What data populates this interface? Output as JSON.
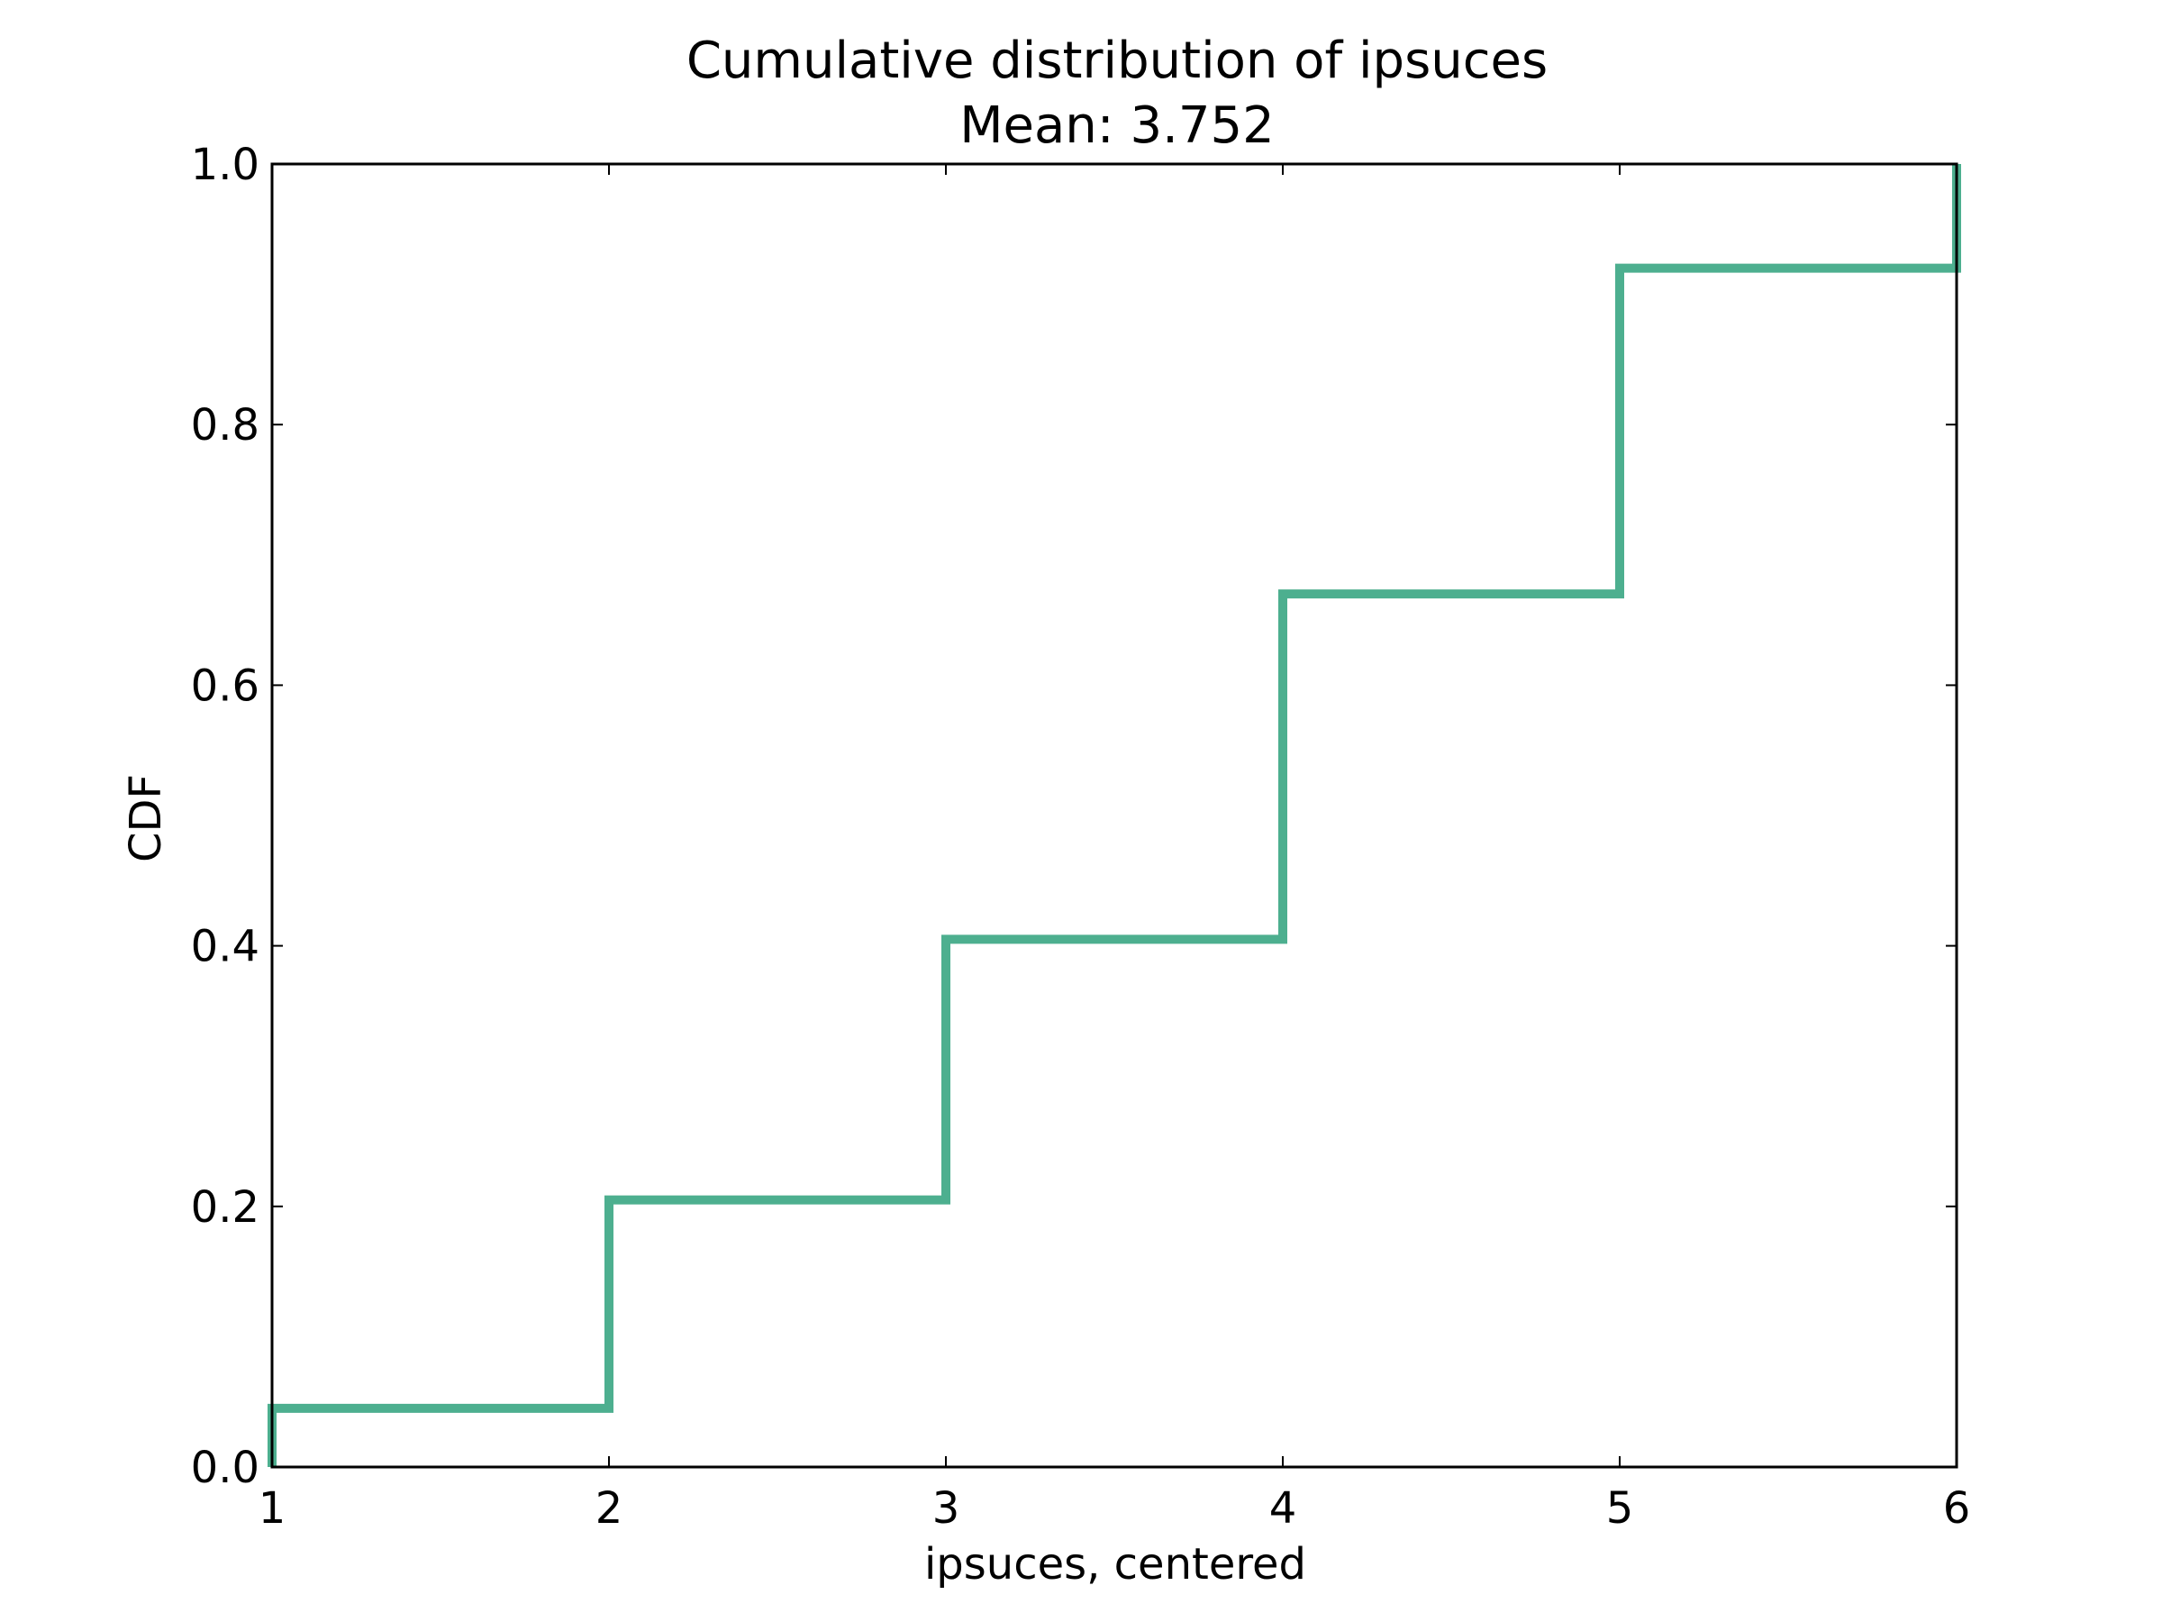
{
  "chart_data": {
    "type": "line",
    "title": "Cumulative distribution of ipsuces",
    "subtitle": "Mean: 3.752",
    "xlabel": "ipsuces, centered",
    "ylabel": "CDF",
    "xlim": [
      1,
      6
    ],
    "ylim": [
      0,
      1
    ],
    "x_ticks": [
      "1",
      "2",
      "3",
      "4",
      "5",
      "6"
    ],
    "y_ticks": [
      "0.0",
      "0.2",
      "0.4",
      "0.6",
      "0.8",
      "1.0"
    ],
    "grid": false,
    "series": [
      {
        "color": "#4daf8f",
        "step": "post",
        "x": [
          1,
          2,
          3,
          4,
          5,
          6
        ],
        "y": [
          0.045,
          0.205,
          0.405,
          0.67,
          0.92,
          1.0
        ]
      }
    ]
  }
}
